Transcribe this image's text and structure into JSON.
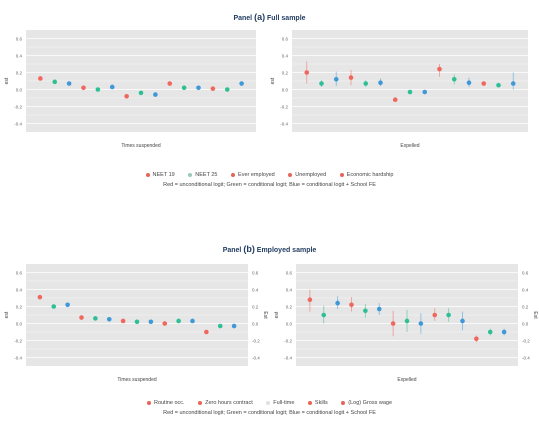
{
  "panels": [
    {
      "letter": "(a)",
      "prefix": "Panel",
      "suffix": "Full sample",
      "legend": [
        "NEET 19",
        "NEET 25",
        "Ever employed",
        "Unemployed",
        "Economic hardship"
      ],
      "note": "Red = unconditional logit; Green = conditional logit; Blue = conditional logit + School FE",
      "legend_colors": [
        "#e8645a",
        "#9ac9b8",
        "#e8645a",
        "#e8645a",
        "#e8645a"
      ]
    },
    {
      "letter": "(b)",
      "prefix": "Panel",
      "suffix": "Employed sample",
      "legend": [
        "Routine occ.",
        "Zero hours contract",
        "Full-time",
        "Skills",
        "(Log) Gross wage"
      ],
      "note": "Red = unconditional logit; Green = conditional logit; Blue = conditional logit + School FE",
      "legend_colors": [
        "#e8645a",
        "#e8645a",
        "#e0e0e0",
        "#e8645a",
        "#e8645a"
      ]
    }
  ],
  "colors": {
    "red": "#f0675e",
    "green": "#2ebf94",
    "blue": "#3f98d8",
    "bg": "#e6e6e6",
    "grid": "#ffffff"
  },
  "chart_data": [
    {
      "type": "scatter",
      "xlabel": "Times suspended",
      "ylabel": "est",
      "ylim": [
        -0.5,
        0.7
      ],
      "yticks": [
        "0.6",
        "0.4",
        "0.2",
        "0.0",
        "-0.2",
        "-0.4"
      ],
      "points": [
        {
          "v": 0.13,
          "lo": 0.13,
          "hi": 0.13,
          "c": "red"
        },
        {
          "v": 0.09,
          "lo": 0.09,
          "hi": 0.09,
          "c": "green"
        },
        {
          "v": 0.07,
          "lo": 0.07,
          "hi": 0.07,
          "c": "blue"
        },
        {
          "v": 0.02,
          "lo": 0.02,
          "hi": 0.02,
          "c": "red"
        },
        {
          "v": 0.0,
          "lo": 0.0,
          "hi": 0.0,
          "c": "green"
        },
        {
          "v": 0.03,
          "lo": 0.03,
          "hi": 0.03,
          "c": "blue"
        },
        {
          "v": -0.08,
          "lo": -0.08,
          "hi": -0.08,
          "c": "red"
        },
        {
          "v": -0.04,
          "lo": -0.04,
          "hi": -0.04,
          "c": "green"
        },
        {
          "v": -0.06,
          "lo": -0.06,
          "hi": -0.06,
          "c": "blue"
        },
        {
          "v": 0.07,
          "lo": 0.07,
          "hi": 0.07,
          "c": "red"
        },
        {
          "v": 0.02,
          "lo": 0.02,
          "hi": 0.02,
          "c": "green"
        },
        {
          "v": 0.02,
          "lo": 0.02,
          "hi": 0.02,
          "c": "blue"
        },
        {
          "v": 0.01,
          "lo": 0.01,
          "hi": 0.01,
          "c": "red"
        },
        {
          "v": 0.0,
          "lo": 0.0,
          "hi": 0.0,
          "c": "green"
        },
        {
          "v": 0.07,
          "lo": 0.07,
          "hi": 0.07,
          "c": "blue"
        }
      ]
    },
    {
      "type": "scatter",
      "xlabel": "Expelled",
      "ylabel": "est",
      "ylim": [
        -0.5,
        0.7
      ],
      "yticks": [
        "0.6",
        "0.4",
        "0.2",
        "0.0",
        "-0.2",
        "-0.4"
      ],
      "points": [
        {
          "v": 0.2,
          "lo": 0.07,
          "hi": 0.33,
          "c": "red"
        },
        {
          "v": 0.07,
          "lo": 0.03,
          "hi": 0.11,
          "c": "green"
        },
        {
          "v": 0.12,
          "lo": 0.04,
          "hi": 0.21,
          "c": "blue"
        },
        {
          "v": 0.14,
          "lo": 0.05,
          "hi": 0.23,
          "c": "red"
        },
        {
          "v": 0.07,
          "lo": 0.03,
          "hi": 0.11,
          "c": "green"
        },
        {
          "v": 0.08,
          "lo": 0.04,
          "hi": 0.13,
          "c": "blue"
        },
        {
          "v": -0.12,
          "lo": -0.14,
          "hi": -0.1,
          "c": "red"
        },
        {
          "v": -0.03,
          "lo": -0.04,
          "hi": -0.02,
          "c": "green"
        },
        {
          "v": -0.03,
          "lo": -0.04,
          "hi": -0.02,
          "c": "blue"
        },
        {
          "v": 0.24,
          "lo": 0.15,
          "hi": 0.3,
          "c": "red"
        },
        {
          "v": 0.12,
          "lo": 0.06,
          "hi": 0.18,
          "c": "green"
        },
        {
          "v": 0.08,
          "lo": 0.03,
          "hi": 0.14,
          "c": "blue"
        },
        {
          "v": 0.07,
          "lo": 0.05,
          "hi": 0.09,
          "c": "red"
        },
        {
          "v": 0.05,
          "lo": 0.03,
          "hi": 0.08,
          "c": "green"
        },
        {
          "v": 0.07,
          "lo": 0.0,
          "hi": 0.2,
          "c": "blue"
        }
      ]
    },
    {
      "type": "scatter",
      "xlabel": "Times suspended",
      "ylabel": "est",
      "ylabel_right": "Est",
      "ylim": [
        -0.5,
        0.7
      ],
      "yticks": [
        "0.6",
        "0.4",
        "0.2",
        "0.0",
        "-0.2",
        "-0.4"
      ],
      "points": [
        {
          "v": 0.31,
          "lo": 0.31,
          "hi": 0.31,
          "c": "red"
        },
        {
          "v": 0.2,
          "lo": 0.2,
          "hi": 0.2,
          "c": "green"
        },
        {
          "v": 0.22,
          "lo": 0.22,
          "hi": 0.22,
          "c": "blue"
        },
        {
          "v": 0.07,
          "lo": 0.07,
          "hi": 0.07,
          "c": "red"
        },
        {
          "v": 0.06,
          "lo": 0.06,
          "hi": 0.06,
          "c": "green"
        },
        {
          "v": 0.05,
          "lo": 0.05,
          "hi": 0.05,
          "c": "blue"
        },
        {
          "v": 0.03,
          "lo": 0.03,
          "hi": 0.03,
          "c": "red"
        },
        {
          "v": 0.02,
          "lo": 0.02,
          "hi": 0.02,
          "c": "green"
        },
        {
          "v": 0.02,
          "lo": 0.02,
          "hi": 0.02,
          "c": "blue"
        },
        {
          "v": 0.0,
          "lo": 0.0,
          "hi": 0.0,
          "c": "red"
        },
        {
          "v": 0.03,
          "lo": 0.03,
          "hi": 0.03,
          "c": "green"
        },
        {
          "v": 0.03,
          "lo": 0.03,
          "hi": 0.03,
          "c": "blue"
        },
        {
          "v": -0.1,
          "lo": -0.1,
          "hi": -0.1,
          "c": "red"
        },
        {
          "v": -0.03,
          "lo": -0.03,
          "hi": -0.03,
          "c": "green"
        },
        {
          "v": -0.03,
          "lo": -0.03,
          "hi": -0.03,
          "c": "blue"
        }
      ]
    },
    {
      "type": "scatter",
      "xlabel": "Expelled",
      "ylabel": "est",
      "ylabel_right": "Est",
      "ylim": [
        -0.5,
        0.7
      ],
      "yticks": [
        "0.6",
        "0.4",
        "0.2",
        "0.0",
        "-0.2",
        "-0.4"
      ],
      "points": [
        {
          "v": 0.28,
          "lo": 0.14,
          "hi": 0.4,
          "c": "red"
        },
        {
          "v": 0.1,
          "lo": 0.0,
          "hi": 0.21,
          "c": "green"
        },
        {
          "v": 0.24,
          "lo": 0.17,
          "hi": 0.32,
          "c": "blue"
        },
        {
          "v": 0.22,
          "lo": 0.14,
          "hi": 0.31,
          "c": "red"
        },
        {
          "v": 0.15,
          "lo": 0.07,
          "hi": 0.23,
          "c": "green"
        },
        {
          "v": 0.17,
          "lo": 0.1,
          "hi": 0.24,
          "c": "blue"
        },
        {
          "v": 0.0,
          "lo": -0.15,
          "hi": 0.15,
          "c": "red"
        },
        {
          "v": 0.03,
          "lo": -0.1,
          "hi": 0.16,
          "c": "green"
        },
        {
          "v": 0.0,
          "lo": -0.12,
          "hi": 0.12,
          "c": "blue"
        },
        {
          "v": 0.1,
          "lo": 0.03,
          "hi": 0.18,
          "c": "red"
        },
        {
          "v": 0.1,
          "lo": 0.02,
          "hi": 0.18,
          "c": "green"
        },
        {
          "v": 0.03,
          "lo": -0.08,
          "hi": 0.14,
          "c": "blue"
        },
        {
          "v": -0.18,
          "lo": -0.22,
          "hi": -0.14,
          "c": "red"
        },
        {
          "v": -0.1,
          "lo": -0.14,
          "hi": -0.06,
          "c": "green"
        },
        {
          "v": -0.1,
          "lo": -0.14,
          "hi": -0.06,
          "c": "blue"
        }
      ]
    }
  ]
}
